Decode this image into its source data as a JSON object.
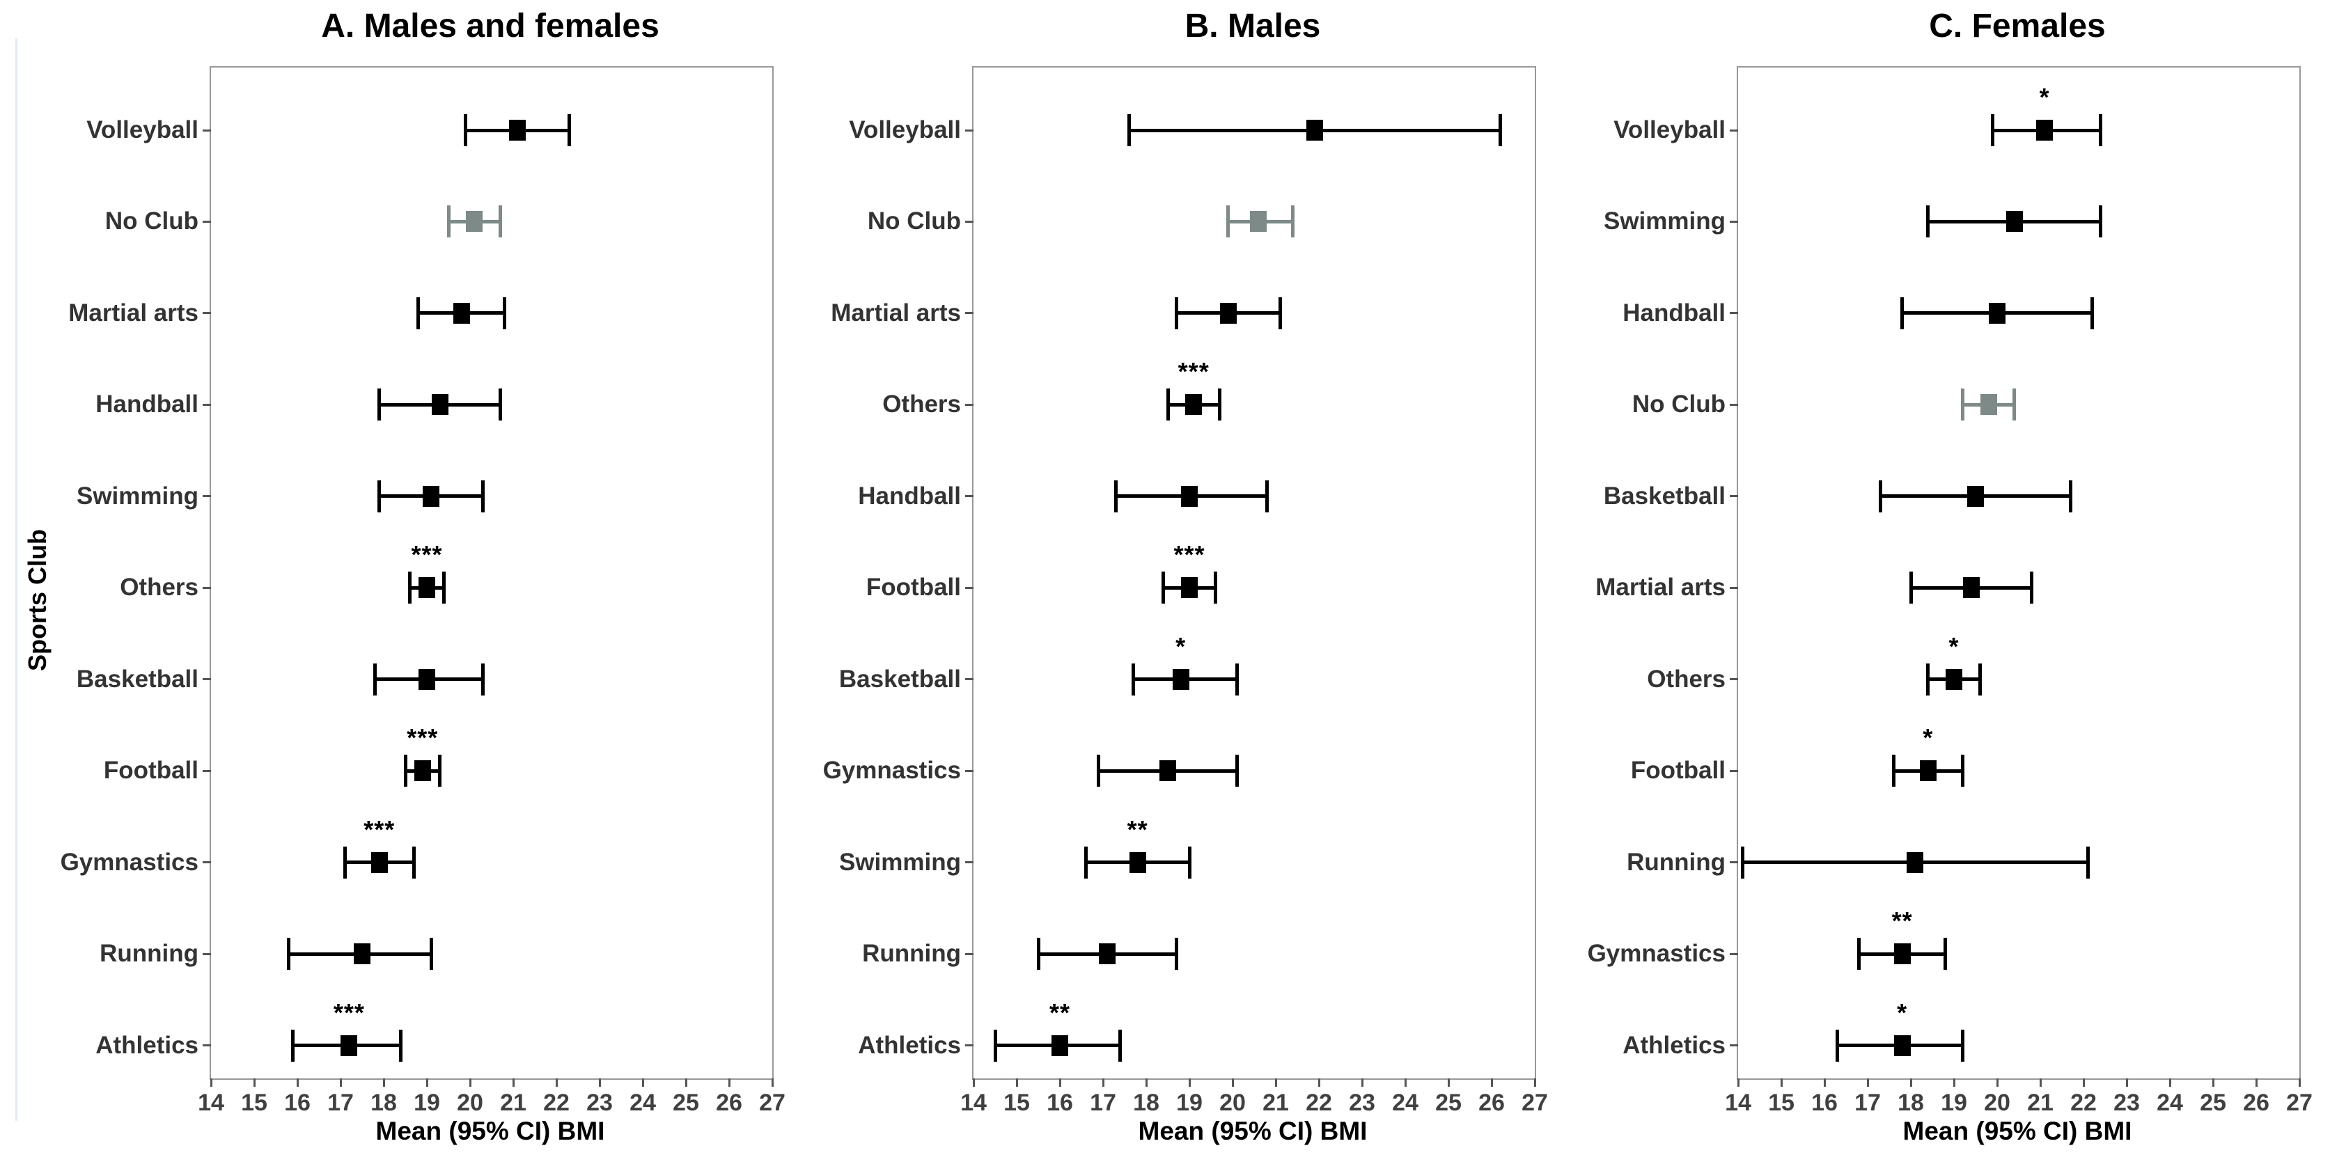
{
  "figure_labels": {
    "y_axis": "Sports Club",
    "x_axis": "Mean (95% CI) BMI"
  },
  "colors": {
    "marker_black": "#000000",
    "marker_gray": "#7d8a87",
    "axis_text": "#404040",
    "category_text": "#333333",
    "panel_border": "#999999"
  },
  "x_ticks": [
    "14",
    "15",
    "16",
    "17",
    "18",
    "19",
    "20",
    "21",
    "22",
    "23",
    "24",
    "25",
    "26",
    "27"
  ],
  "chart_data": [
    {
      "type": "scatter",
      "subtype": "horizontal-error-bar-forest",
      "title": "A. Males and females",
      "xlabel": "Mean (95% CI) BMI",
      "ylabel": "Sports Club",
      "xlim": [
        14,
        27
      ],
      "grid": false,
      "legend": "none",
      "rows": [
        {
          "category": "Volleyball",
          "mean": 21.1,
          "ci_low": 19.9,
          "ci_high": 22.3,
          "significance": "",
          "color": "black"
        },
        {
          "category": "No Club",
          "mean": 20.1,
          "ci_low": 19.5,
          "ci_high": 20.7,
          "significance": "",
          "color": "gray"
        },
        {
          "category": "Martial arts",
          "mean": 19.8,
          "ci_low": 18.8,
          "ci_high": 20.8,
          "significance": "",
          "color": "black"
        },
        {
          "category": "Handball",
          "mean": 19.3,
          "ci_low": 17.9,
          "ci_high": 20.7,
          "significance": "",
          "color": "black"
        },
        {
          "category": "Swimming",
          "mean": 19.1,
          "ci_low": 17.9,
          "ci_high": 20.3,
          "significance": "",
          "color": "black"
        },
        {
          "category": "Others",
          "mean": 19.0,
          "ci_low": 18.6,
          "ci_high": 19.4,
          "significance": "***",
          "color": "black"
        },
        {
          "category": "Basketball",
          "mean": 19.0,
          "ci_low": 17.8,
          "ci_high": 20.3,
          "significance": "",
          "color": "black"
        },
        {
          "category": "Football",
          "mean": 18.9,
          "ci_low": 18.5,
          "ci_high": 19.3,
          "significance": "***",
          "color": "black"
        },
        {
          "category": "Gymnastics",
          "mean": 17.9,
          "ci_low": 17.1,
          "ci_high": 18.7,
          "significance": "***",
          "color": "black"
        },
        {
          "category": "Running",
          "mean": 17.5,
          "ci_low": 15.8,
          "ci_high": 19.1,
          "significance": "",
          "color": "black"
        },
        {
          "category": "Athletics",
          "mean": 17.2,
          "ci_low": 15.9,
          "ci_high": 18.4,
          "significance": "***",
          "color": "black"
        }
      ]
    },
    {
      "type": "scatter",
      "subtype": "horizontal-error-bar-forest",
      "title": "B. Males",
      "xlabel": "Mean (95% CI) BMI",
      "ylabel": "Sports Club",
      "xlim": [
        14,
        27
      ],
      "grid": false,
      "legend": "none",
      "rows": [
        {
          "category": "Volleyball",
          "mean": 21.9,
          "ci_low": 17.6,
          "ci_high": 26.2,
          "significance": "",
          "color": "black"
        },
        {
          "category": "No Club",
          "mean": 20.6,
          "ci_low": 19.9,
          "ci_high": 21.4,
          "significance": "",
          "color": "gray"
        },
        {
          "category": "Martial arts",
          "mean": 19.9,
          "ci_low": 18.7,
          "ci_high": 21.1,
          "significance": "",
          "color": "black"
        },
        {
          "category": "Others",
          "mean": 19.1,
          "ci_low": 18.5,
          "ci_high": 19.7,
          "significance": "***",
          "color": "black"
        },
        {
          "category": "Handball",
          "mean": 19.0,
          "ci_low": 17.3,
          "ci_high": 20.8,
          "significance": "",
          "color": "black"
        },
        {
          "category": "Football",
          "mean": 19.0,
          "ci_low": 18.4,
          "ci_high": 19.6,
          "significance": "***",
          "color": "black"
        },
        {
          "category": "Basketball",
          "mean": 18.8,
          "ci_low": 17.7,
          "ci_high": 20.1,
          "significance": "*",
          "color": "black"
        },
        {
          "category": "Gymnastics",
          "mean": 18.5,
          "ci_low": 16.9,
          "ci_high": 20.1,
          "significance": "",
          "color": "black"
        },
        {
          "category": "Swimming",
          "mean": 17.8,
          "ci_low": 16.6,
          "ci_high": 19.0,
          "significance": "**",
          "color": "black"
        },
        {
          "category": "Running",
          "mean": 17.1,
          "ci_low": 15.5,
          "ci_high": 18.7,
          "significance": "",
          "color": "black"
        },
        {
          "category": "Athletics",
          "mean": 16.0,
          "ci_low": 14.5,
          "ci_high": 17.4,
          "significance": "**",
          "color": "black"
        }
      ]
    },
    {
      "type": "scatter",
      "subtype": "horizontal-error-bar-forest",
      "title": "C. Females",
      "xlabel": "Mean (95% CI) BMI",
      "ylabel": "Sports Club",
      "xlim": [
        14,
        27
      ],
      "grid": false,
      "legend": "none",
      "rows": [
        {
          "category": "Volleyball",
          "mean": 21.1,
          "ci_low": 19.9,
          "ci_high": 22.4,
          "significance": "*",
          "color": "black"
        },
        {
          "category": "Swimming",
          "mean": 20.4,
          "ci_low": 18.4,
          "ci_high": 22.4,
          "significance": "",
          "color": "black"
        },
        {
          "category": "Handball",
          "mean": 20.0,
          "ci_low": 17.8,
          "ci_high": 22.2,
          "significance": "",
          "color": "black"
        },
        {
          "category": "No Club",
          "mean": 19.8,
          "ci_low": 19.2,
          "ci_high": 20.4,
          "significance": "",
          "color": "gray"
        },
        {
          "category": "Basketball",
          "mean": 19.5,
          "ci_low": 17.3,
          "ci_high": 21.7,
          "significance": "",
          "color": "black"
        },
        {
          "category": "Martial arts",
          "mean": 19.4,
          "ci_low": 18.0,
          "ci_high": 20.8,
          "significance": "",
          "color": "black"
        },
        {
          "category": "Others",
          "mean": 19.0,
          "ci_low": 18.4,
          "ci_high": 19.6,
          "significance": "*",
          "color": "black"
        },
        {
          "category": "Football",
          "mean": 18.4,
          "ci_low": 17.6,
          "ci_high": 19.2,
          "significance": "*",
          "color": "black"
        },
        {
          "category": "Running",
          "mean": 18.1,
          "ci_low": 14.1,
          "ci_high": 22.1,
          "significance": "",
          "color": "black"
        },
        {
          "category": "Gymnastics",
          "mean": 17.8,
          "ci_low": 16.8,
          "ci_high": 18.8,
          "significance": "**",
          "color": "black"
        },
        {
          "category": "Athletics",
          "mean": 17.8,
          "ci_low": 16.3,
          "ci_high": 19.2,
          "significance": "*",
          "color": "black"
        }
      ]
    }
  ]
}
